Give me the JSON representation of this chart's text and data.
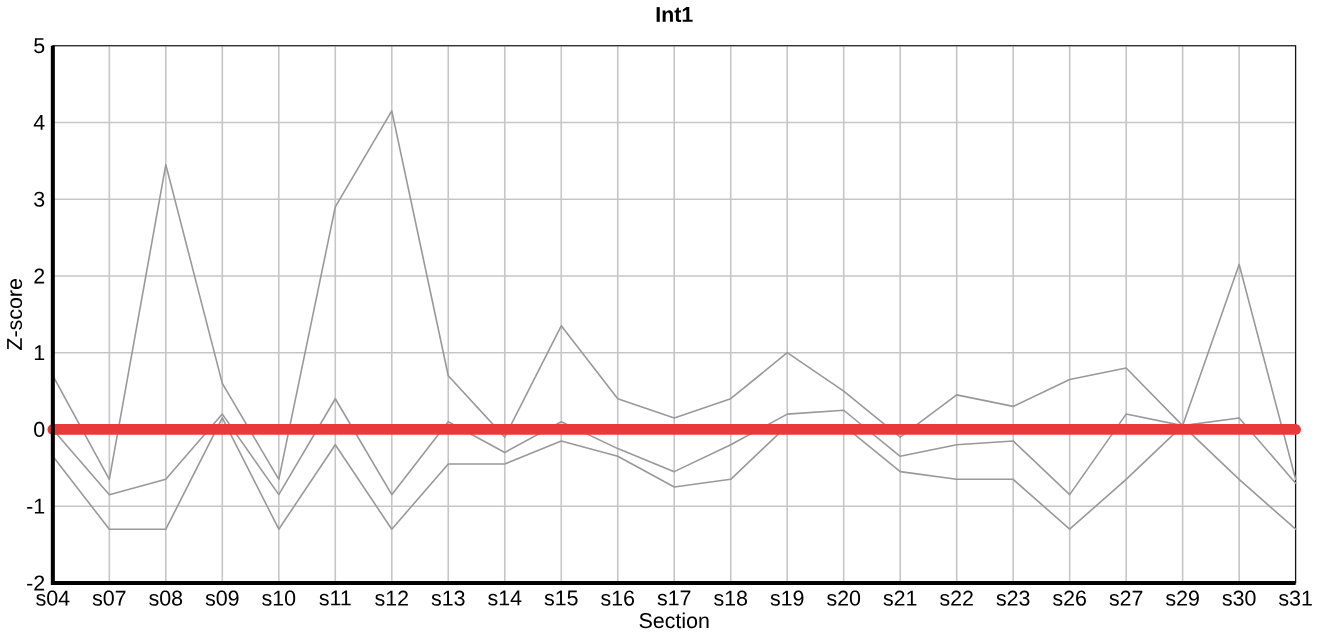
{
  "chart_data": {
    "type": "line",
    "title": "Int1",
    "xlabel": "Section",
    "ylabel": "Z-score",
    "categories": [
      "s04",
      "s07",
      "s08",
      "s09",
      "s10",
      "s11",
      "s12",
      "s13",
      "s14",
      "s15",
      "s16",
      "s17",
      "s18",
      "s19",
      "s20",
      "s21",
      "s22",
      "s23",
      "s26",
      "s27",
      "s29",
      "s30",
      "s31"
    ],
    "series": [
      {
        "color": "#999999",
        "values": [
          0.7,
          -0.65,
          3.45,
          0.6,
          -0.65,
          2.9,
          4.15,
          0.7,
          -0.1,
          1.35,
          0.4,
          0.15,
          0.4,
          1.0,
          0.5,
          -0.1,
          0.45,
          0.3,
          0.65,
          0.8,
          0.05,
          2.15,
          -0.65
        ]
      },
      {
        "color": "#999999",
        "values": [
          0,
          -0.85,
          -0.65,
          0.2,
          -0.85,
          0.4,
          -0.85,
          0.1,
          -0.3,
          0.1,
          -0.25,
          -0.55,
          -0.2,
          0.2,
          0.25,
          -0.35,
          -0.2,
          -0.15,
          -0.85,
          0.2,
          0.05,
          0.15,
          -0.7
        ]
      },
      {
        "color": "#999999",
        "values": [
          -0.35,
          -1.3,
          -1.3,
          0.15,
          -1.3,
          -0.2,
          -1.3,
          -0.45,
          -0.45,
          -0.15,
          -0.35,
          -0.75,
          -0.65,
          0.05,
          0.05,
          -0.55,
          -0.65,
          -0.65,
          -1.3,
          -0.65,
          0.05,
          -0.65,
          -1.3
        ]
      }
    ],
    "ylim": [
      -2,
      5
    ],
    "yticks": [
      -2,
      -1,
      0,
      1,
      2,
      3,
      4,
      5
    ],
    "grid": true,
    "marker": "none",
    "line_style": "solid",
    "ref_lines": [
      {
        "axis": "y",
        "value": 0,
        "color": "#e83a3a"
      }
    ]
  }
}
